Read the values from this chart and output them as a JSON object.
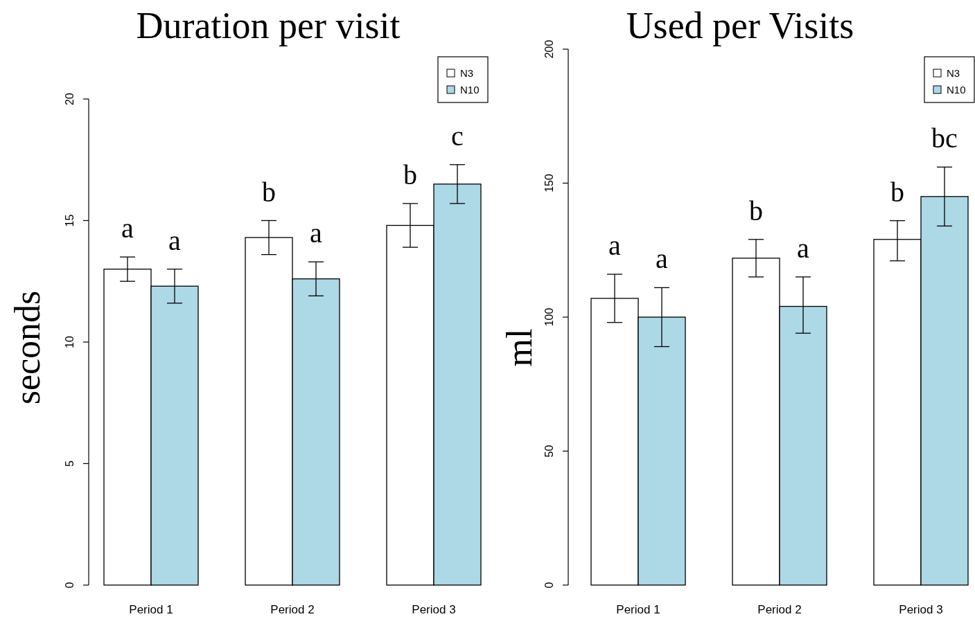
{
  "chart_data": [
    {
      "type": "bar",
      "title": "Duration per visit",
      "ylabel": "seconds",
      "categories": [
        "Period 1",
        "Period 2",
        "Period 3"
      ],
      "series": [
        {
          "name": "N3",
          "color": "#ffffff",
          "values": [
            13.0,
            14.3,
            14.8
          ],
          "errors": [
            [
              12.5,
              13.5
            ],
            [
              13.6,
              15.0
            ],
            [
              13.9,
              15.7
            ]
          ]
        },
        {
          "name": "N10",
          "color": "#add8e6",
          "values": [
            12.3,
            12.6,
            16.5
          ],
          "errors": [
            [
              11.6,
              13.0
            ],
            [
              11.9,
              13.3
            ],
            [
              15.7,
              17.3
            ]
          ]
        }
      ],
      "ylim": [
        0,
        20
      ],
      "yticks": [
        0,
        5,
        10,
        15,
        20
      ],
      "legend": "top right",
      "annotations": [
        "a",
        "a",
        "b",
        "a",
        "b",
        "c"
      ]
    },
    {
      "type": "bar",
      "title": "Used per Visits",
      "ylabel": "ml",
      "categories": [
        "Period 1",
        "Period 2",
        "Period 3"
      ],
      "series": [
        {
          "name": "N3",
          "color": "#ffffff",
          "values": [
            107,
            122,
            129
          ],
          "errors": [
            [
              98,
              116
            ],
            [
              115,
              129
            ],
            [
              121,
              136
            ]
          ]
        },
        {
          "name": "N10",
          "color": "#add8e6",
          "values": [
            100,
            104,
            145
          ],
          "errors": [
            [
              89,
              111
            ],
            [
              94,
              115
            ],
            [
              134,
              156
            ]
          ]
        }
      ],
      "ylim": [
        0,
        200
      ],
      "yticks": [
        0,
        50,
        100,
        150,
        200
      ],
      "legend": "top right",
      "annotations": [
        "a",
        "a",
        "b",
        "a",
        "b",
        "bc"
      ]
    }
  ]
}
